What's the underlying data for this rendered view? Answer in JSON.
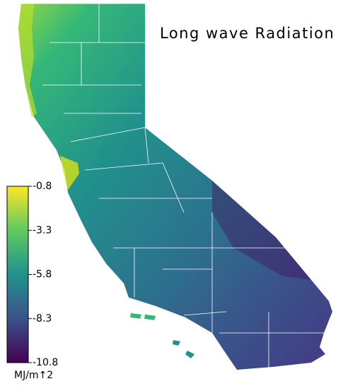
{
  "title": "Long wave Radiation",
  "colorbar": {
    "lim": [
      -10.8,
      -0.8
    ],
    "ticks": [
      -0.8,
      -3.3,
      -5.8,
      -8.3,
      -10.8
    ],
    "label": "MJ/m↑2"
  }
}
